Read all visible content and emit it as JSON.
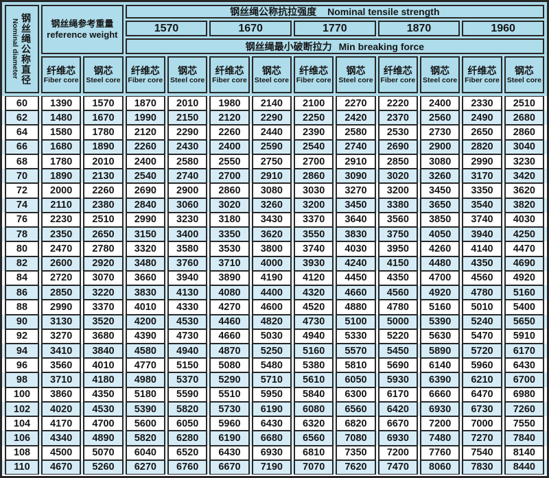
{
  "colors": {
    "header_bg": "#aedceb",
    "stripe_bg": "#d5ecf7",
    "border": "#272727",
    "text": "#151515"
  },
  "table": {
    "diameter": {
      "zh": "钢丝绳公称直径",
      "en": "Nominal diameter"
    },
    "ref_weight": {
      "zh": "钢丝绳参考重量",
      "en": "reference weight"
    },
    "tensile": {
      "zh": "钢丝绳公称抗拉强度",
      "en": "Nominal tensile strength"
    },
    "breaking": {
      "zh": "钢丝绳最小破断拉力",
      "en": "Min breaking force"
    },
    "grades": [
      "1570",
      "1670",
      "1770",
      "1870",
      "1960"
    ],
    "fiber": {
      "zh": "纤维芯",
      "en": "Fiber core"
    },
    "steel": {
      "zh": "钢芯",
      "en": "Steel core"
    },
    "rows": [
      [
        60,
        1390,
        1570,
        1870,
        2010,
        1980,
        2140,
        2100,
        2270,
        2220,
        2400,
        2330,
        2510
      ],
      [
        62,
        1480,
        1670,
        1990,
        2150,
        2120,
        2290,
        2250,
        2420,
        2370,
        2560,
        2490,
        2680
      ],
      [
        64,
        1580,
        1780,
        2120,
        2290,
        2260,
        2440,
        2390,
        2580,
        2530,
        2730,
        2650,
        2860
      ],
      [
        66,
        1680,
        1890,
        2260,
        2430,
        2400,
        2590,
        2540,
        2740,
        2690,
        2900,
        2820,
        3040
      ],
      [
        68,
        1780,
        2010,
        2400,
        2580,
        2550,
        2750,
        2700,
        2910,
        2850,
        3080,
        2990,
        3230
      ],
      [
        70,
        1890,
        2130,
        2540,
        2740,
        2700,
        2910,
        2860,
        3090,
        3020,
        3260,
        3170,
        3420
      ],
      [
        72,
        2000,
        2260,
        2690,
        2900,
        2860,
        3080,
        3030,
        3270,
        3200,
        3450,
        3350,
        3620
      ],
      [
        74,
        2110,
        2380,
        2840,
        3060,
        3020,
        3260,
        3200,
        3450,
        3380,
        3650,
        3540,
        3820
      ],
      [
        76,
        2230,
        2510,
        2990,
        3230,
        3180,
        3430,
        3370,
        3640,
        3560,
        3850,
        3740,
        4030
      ],
      [
        78,
        2350,
        2650,
        3150,
        3400,
        3350,
        3620,
        3550,
        3830,
        3750,
        4050,
        3940,
        4250
      ],
      [
        80,
        2470,
        2780,
        3320,
        3580,
        3530,
        3800,
        3740,
        4030,
        3950,
        4260,
        4140,
        4470
      ],
      [
        82,
        2600,
        2920,
        3480,
        3760,
        3710,
        4000,
        3930,
        4240,
        4150,
        4480,
        4350,
        4690
      ],
      [
        84,
        2720,
        3070,
        3660,
        3940,
        3890,
        4190,
        4120,
        4450,
        4350,
        4700,
        4560,
        4920
      ],
      [
        86,
        2850,
        3220,
        3830,
        4130,
        4080,
        4400,
        4320,
        4660,
        4560,
        4920,
        4780,
        5160
      ],
      [
        88,
        2990,
        3370,
        4010,
        4330,
        4270,
        4600,
        4520,
        4880,
        4780,
        5160,
        5010,
        5400
      ],
      [
        90,
        3130,
        3520,
        4200,
        4530,
        4460,
        4820,
        4730,
        5100,
        5000,
        5390,
        5240,
        5650
      ],
      [
        92,
        3270,
        3680,
        4390,
        4730,
        4660,
        5030,
        4940,
        5330,
        5220,
        5630,
        5470,
        5910
      ],
      [
        94,
        3410,
        3840,
        4580,
        4940,
        4870,
        5250,
        5160,
        5570,
        5450,
        5890,
        5720,
        6170
      ],
      [
        96,
        3560,
        4010,
        4770,
        5150,
        5080,
        5480,
        5380,
        5810,
        5690,
        6140,
        5960,
        6430
      ],
      [
        98,
        3710,
        4180,
        4980,
        5370,
        5290,
        5710,
        5610,
        6050,
        5930,
        6390,
        6210,
        6700
      ],
      [
        100,
        3860,
        4350,
        5180,
        5590,
        5510,
        5950,
        5840,
        6300,
        6170,
        6660,
        6470,
        6980
      ],
      [
        102,
        4020,
        4530,
        5390,
        5820,
        5730,
        6190,
        6080,
        6560,
        6420,
        6930,
        6730,
        7260
      ],
      [
        104,
        4170,
        4700,
        5600,
        6050,
        5960,
        6430,
        6320,
        6820,
        6670,
        7200,
        7000,
        7550
      ],
      [
        106,
        4340,
        4890,
        5820,
        6280,
        6190,
        6680,
        6560,
        7080,
        6930,
        7480,
        7270,
        7840
      ],
      [
        108,
        4500,
        5070,
        6040,
        6520,
        6430,
        6930,
        6810,
        7350,
        7200,
        7760,
        7540,
        8140
      ],
      [
        110,
        4670,
        5260,
        6270,
        6760,
        6670,
        7190,
        7070,
        7620,
        7470,
        8060,
        7830,
        8440
      ]
    ]
  }
}
